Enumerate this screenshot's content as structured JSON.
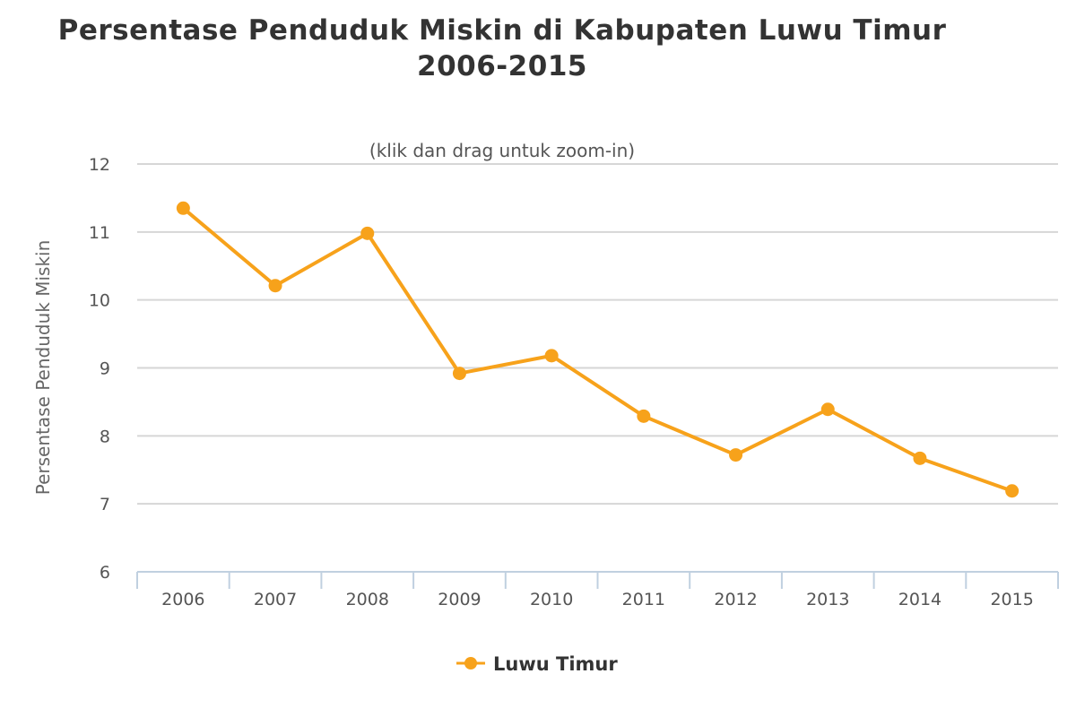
{
  "chart_data": {
    "type": "line",
    "title_line1": "Persentase Penduduk Miskin di Kabupaten Luwu Timur",
    "title_line2": "2006-2015",
    "subtitle": "(klik dan drag untuk zoom-in)",
    "xlabel": "",
    "ylabel": "Persentase Penduduk Miskin",
    "categories": [
      "2006",
      "2007",
      "2008",
      "2009",
      "2010",
      "2011",
      "2012",
      "2013",
      "2014",
      "2015"
    ],
    "ylim": [
      6,
      12
    ],
    "yticks": [
      "6",
      "7",
      "8",
      "9",
      "10",
      "11",
      "12"
    ],
    "grid": true,
    "legend_position": "bottom",
    "series": [
      {
        "name": "Luwu Timur",
        "color": "#f7a21b",
        "values": [
          11.35,
          10.21,
          10.98,
          8.92,
          9.18,
          8.29,
          7.72,
          8.39,
          7.67,
          7.19
        ]
      }
    ]
  }
}
